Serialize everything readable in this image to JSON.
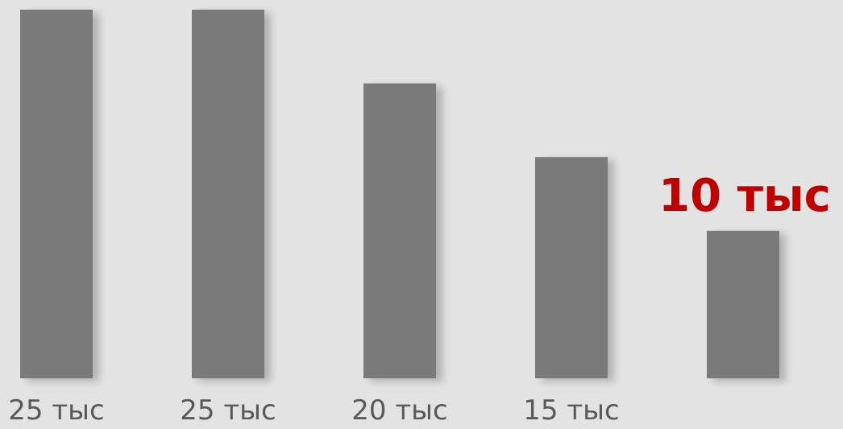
{
  "chart_data": {
    "type": "bar",
    "categories": [
      "25 тыс",
      "25 тыс",
      "20 тыс",
      "15 тыс",
      "10 тыс"
    ],
    "values": [
      25,
      25,
      20,
      15,
      10
    ],
    "ylim": [
      0,
      25
    ],
    "grid": false,
    "bar_color": "#7a7a7a",
    "highlight_index": 4,
    "highlight_color": "#c00000",
    "label_color": "#595959",
    "background": "#e3e3e3"
  }
}
